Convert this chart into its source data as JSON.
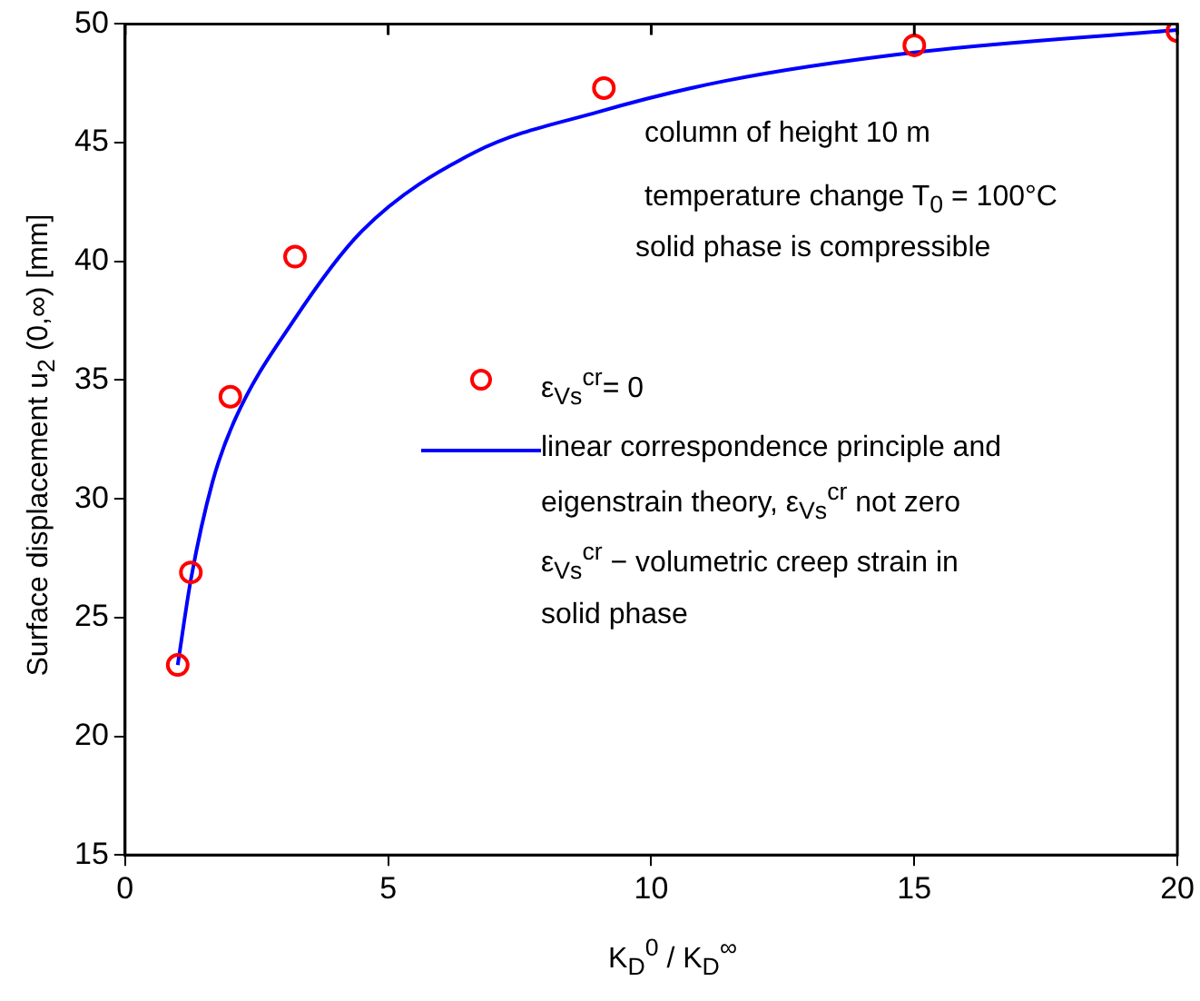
{
  "chart_data": {
    "type": "scatter",
    "xlabel": "K$_{D}$$^{0}$ / K$_{D}$$^{∞}$",
    "ylabel": "Surface displacement u$_{2}$ (0,∞) [mm]",
    "xlim": [
      0,
      20
    ],
    "xticks": [
      0,
      5,
      10,
      15,
      20
    ],
    "ylim": [
      15,
      50
    ],
    "yticks": [
      15,
      20,
      25,
      30,
      35,
      40,
      45,
      50
    ],
    "grid": false,
    "legend": "center",
    "series": [
      {
        "name": "ε$_{Vs}$$^{cr}$= 0",
        "type": "scatter",
        "marker": "circle",
        "color": "#ff0000",
        "x": [
          1,
          1.25,
          2,
          3.23,
          9.1,
          15,
          20
        ],
        "values": [
          23,
          26.9,
          34.3,
          40.2,
          47.3,
          49.1,
          49.7
        ]
      },
      {
        "name": "linear correspondence principle and eigenstrain theory, ε$_{Vs}$$^{cr}$ not zero",
        "type": "line",
        "marker": "none",
        "color": "#0000ff",
        "x": [
          1,
          1.25,
          1.66,
          2.08,
          3.2,
          4.51,
          6.65,
          9,
          11.4,
          15,
          20
        ],
        "values": [
          23,
          26.6,
          30.7,
          33.3,
          37.5,
          41.3,
          44.6,
          46.3,
          47.6,
          48.8,
          49.75
        ]
      }
    ],
    "annotations": [
      "column of height 10 m",
      "temperature change T$_{0}$ = 100°C",
      "solid phase is compressible",
      "ε$_{Vs}$$^{cr}$ − volumetric creep strain in solid phase"
    ]
  }
}
